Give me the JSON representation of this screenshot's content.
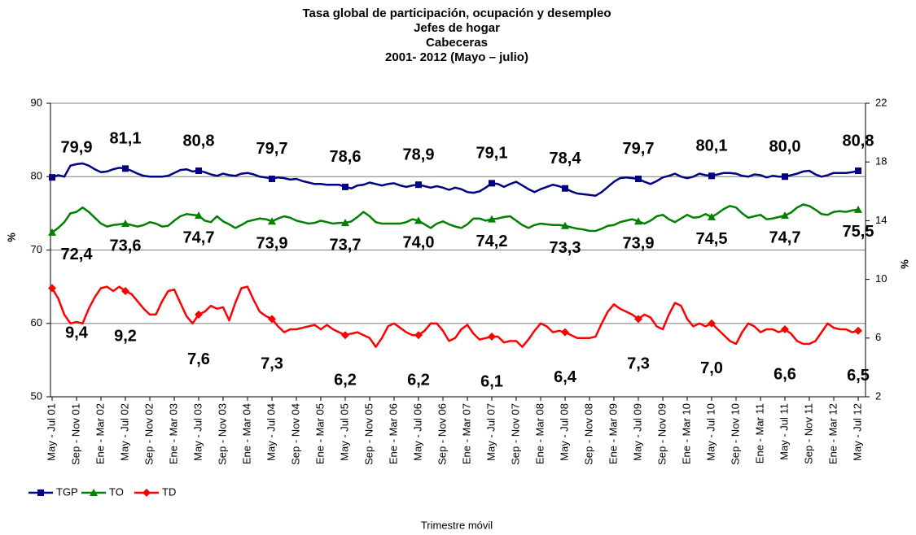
{
  "chart_data": {
    "type": "line",
    "title": [
      "Tasa global de participación, ocupación y desempleo",
      "Jefes de hogar",
      "Cabeceras",
      "2001- 2012 (Mayo – julio)"
    ],
    "x_label": "Trimestre móvil",
    "y_label": "%",
    "y2_label": "%",
    "categories": [
      "May - Jul 01",
      null,
      null,
      null,
      "Sep - Nov 01",
      null,
      null,
      null,
      "Ene - Mar 02",
      null,
      null,
      null,
      "May - Jul 02",
      null,
      null,
      null,
      "Sep - Nov 02",
      null,
      null,
      null,
      "Ene - Mar 03",
      null,
      null,
      null,
      "May - Jul 03",
      null,
      null,
      null,
      "Sep - Nov 03",
      null,
      null,
      null,
      "Ene - Mar 04",
      null,
      null,
      null,
      "May - Jul 04",
      null,
      null,
      null,
      "Sep - Nov 04",
      null,
      null,
      null,
      "Ene - Mar 05",
      null,
      null,
      null,
      "May - Jul 05",
      null,
      null,
      null,
      "Sep - Nov 05",
      null,
      null,
      null,
      "Ene - Mar 06",
      null,
      null,
      null,
      "May - Jul 06",
      null,
      null,
      null,
      "Sep - Nov 06",
      null,
      null,
      null,
      "Ene - Mar 07",
      null,
      null,
      null,
      "May - Jul 07",
      null,
      null,
      null,
      "Sep - Nov 07",
      null,
      null,
      null,
      "Ene - Mar 08",
      null,
      null,
      null,
      "May - Jul 08",
      null,
      null,
      null,
      "Sep - Nov 08",
      null,
      null,
      null,
      "Ene - Mar 09",
      null,
      null,
      null,
      "May - Jul 09",
      null,
      null,
      null,
      "Sep - Nov 09",
      null,
      null,
      null,
      "Ene - Mar 10",
      null,
      null,
      null,
      "May - Jul 10",
      null,
      null,
      null,
      "Sep - Nov 10",
      null,
      null,
      null,
      "Ene - Mar 11",
      null,
      null,
      null,
      "May - Jul 11",
      null,
      null,
      null,
      "Sep - Nov 11",
      null,
      null,
      null,
      "Ene - Mar 12",
      null,
      null,
      null,
      "May - Jul 12"
    ],
    "ylim": [
      50,
      90
    ],
    "yticks": [
      50,
      60,
      70,
      80,
      90
    ],
    "y2lim": [
      2,
      22
    ],
    "y2ticks": [
      2,
      6,
      10,
      14,
      18,
      22
    ],
    "grid": true,
    "series": [
      {
        "name": "TGP",
        "color": "#000080",
        "marker": "square",
        "values": [
          79.9,
          80.2,
          80.0,
          81.5,
          81.7,
          81.8,
          81.5,
          81.0,
          80.6,
          80.7,
          81.0,
          81.2,
          81.1,
          80.8,
          80.4,
          80.1,
          80.0,
          80.0,
          80.0,
          80.1,
          80.5,
          80.9,
          81.0,
          80.7,
          80.8,
          80.6,
          80.3,
          80.1,
          80.4,
          80.2,
          80.1,
          80.4,
          80.5,
          80.3,
          80.0,
          79.9,
          79.7,
          79.9,
          79.8,
          79.6,
          79.7,
          79.4,
          79.2,
          79.0,
          79.0,
          78.9,
          78.9,
          78.9,
          78.6,
          78.4,
          78.8,
          78.9,
          79.2,
          79.0,
          78.8,
          79.0,
          79.1,
          78.8,
          78.6,
          78.8,
          78.9,
          78.7,
          78.5,
          78.7,
          78.5,
          78.2,
          78.5,
          78.3,
          77.9,
          77.8,
          78.0,
          78.5,
          79.1,
          79.0,
          78.6,
          79.0,
          79.3,
          78.8,
          78.3,
          77.9,
          78.3,
          78.6,
          78.9,
          78.7,
          78.4,
          78.0,
          77.7,
          77.6,
          77.5,
          77.4,
          77.9,
          78.6,
          79.3,
          79.8,
          79.9,
          79.8,
          79.7,
          79.3,
          79.0,
          79.4,
          79.9,
          80.1,
          80.4,
          80.0,
          79.8,
          80.0,
          80.4,
          80.2,
          80.1,
          80.3,
          80.5,
          80.5,
          80.4,
          80.1,
          80.0,
          80.3,
          80.2,
          79.9,
          80.1,
          80.0,
          80.0,
          80.2,
          80.4,
          80.7,
          80.8,
          80.3,
          80.0,
          80.2,
          80.5,
          80.5,
          80.5,
          80.6,
          80.8
        ],
        "value_labels": [
          "79,9",
          null,
          null,
          null,
          null,
          null,
          null,
          null,
          null,
          null,
          null,
          null,
          "81,1",
          null,
          null,
          null,
          null,
          null,
          null,
          null,
          null,
          null,
          null,
          null,
          "80,8",
          null,
          null,
          null,
          null,
          null,
          null,
          null,
          null,
          null,
          null,
          null,
          "79,7",
          null,
          null,
          null,
          null,
          null,
          null,
          null,
          null,
          null,
          null,
          null,
          "78,6",
          null,
          null,
          null,
          null,
          null,
          null,
          null,
          null,
          null,
          null,
          null,
          "78,9",
          null,
          null,
          null,
          null,
          null,
          null,
          null,
          null,
          null,
          null,
          null,
          "79,1",
          null,
          null,
          null,
          null,
          null,
          null,
          null,
          null,
          null,
          null,
          null,
          "78,4",
          null,
          null,
          null,
          null,
          null,
          null,
          null,
          null,
          null,
          null,
          null,
          "79,7",
          null,
          null,
          null,
          null,
          null,
          null,
          null,
          null,
          null,
          null,
          null,
          "80,1",
          null,
          null,
          null,
          null,
          null,
          null,
          null,
          null,
          null,
          null,
          null,
          "80,0",
          null,
          null,
          null,
          null,
          null,
          null,
          null,
          null,
          null,
          null,
          null,
          "80,8"
        ]
      },
      {
        "name": "TO",
        "color": "#008000",
        "marker": "triangle",
        "values": [
          72.4,
          73.0,
          73.8,
          75.0,
          75.2,
          75.8,
          75.2,
          74.4,
          73.6,
          73.2,
          73.4,
          73.5,
          73.6,
          73.4,
          73.2,
          73.4,
          73.8,
          73.6,
          73.2,
          73.3,
          74.0,
          74.6,
          74.9,
          74.8,
          74.7,
          74.0,
          73.8,
          74.6,
          73.9,
          73.5,
          73.0,
          73.4,
          73.9,
          74.1,
          74.3,
          74.2,
          73.9,
          74.3,
          74.6,
          74.4,
          74.0,
          73.8,
          73.6,
          73.7,
          74.0,
          73.8,
          73.6,
          73.7,
          73.7,
          73.9,
          74.5,
          75.2,
          74.6,
          73.8,
          73.6,
          73.6,
          73.6,
          73.6,
          73.8,
          74.2,
          74.0,
          73.5,
          73.0,
          73.6,
          73.9,
          73.5,
          73.2,
          73.0,
          73.5,
          74.3,
          74.3,
          74.0,
          74.2,
          74.3,
          74.5,
          74.6,
          74.0,
          73.4,
          73.0,
          73.4,
          73.6,
          73.5,
          73.4,
          73.4,
          73.3,
          73.1,
          72.9,
          72.8,
          72.6,
          72.6,
          72.9,
          73.3,
          73.4,
          73.8,
          74.0,
          74.2,
          73.9,
          73.6,
          74.0,
          74.6,
          74.8,
          74.2,
          73.8,
          74.3,
          74.8,
          74.4,
          74.5,
          74.9,
          74.5,
          75.0,
          75.6,
          76.0,
          75.8,
          75.0,
          74.4,
          74.6,
          74.8,
          74.2,
          74.3,
          74.5,
          74.7,
          75.1,
          75.8,
          76.2,
          76.0,
          75.5,
          74.9,
          74.8,
          75.2,
          75.3,
          75.2,
          75.4,
          75.5
        ],
        "value_labels": [
          "72,4",
          null,
          null,
          null,
          null,
          null,
          null,
          null,
          null,
          null,
          null,
          null,
          "73,6",
          null,
          null,
          null,
          null,
          null,
          null,
          null,
          null,
          null,
          null,
          null,
          "74,7",
          null,
          null,
          null,
          null,
          null,
          null,
          null,
          null,
          null,
          null,
          null,
          "73,9",
          null,
          null,
          null,
          null,
          null,
          null,
          null,
          null,
          null,
          null,
          null,
          "73,7",
          null,
          null,
          null,
          null,
          null,
          null,
          null,
          null,
          null,
          null,
          null,
          "74,0",
          null,
          null,
          null,
          null,
          null,
          null,
          null,
          null,
          null,
          null,
          null,
          "74,2",
          null,
          null,
          null,
          null,
          null,
          null,
          null,
          null,
          null,
          null,
          null,
          "73,3",
          null,
          null,
          null,
          null,
          null,
          null,
          null,
          null,
          null,
          null,
          null,
          "73,9",
          null,
          null,
          null,
          null,
          null,
          null,
          null,
          null,
          null,
          null,
          null,
          "74,5",
          null,
          null,
          null,
          null,
          null,
          null,
          null,
          null,
          null,
          null,
          null,
          "74,7",
          null,
          null,
          null,
          null,
          null,
          null,
          null,
          null,
          null,
          null,
          null,
          "75,5"
        ]
      },
      {
        "name": "TD",
        "color": "#ff0000",
        "marker": "diamond",
        "axis": "y2",
        "values": [
          9.4,
          8.7,
          7.6,
          7.0,
          7.1,
          7.0,
          8.0,
          8.8,
          9.4,
          9.5,
          9.2,
          9.5,
          9.2,
          9.0,
          8.5,
          8.0,
          7.6,
          7.6,
          8.5,
          9.2,
          9.3,
          8.4,
          7.5,
          7.0,
          7.6,
          7.8,
          8.2,
          8.0,
          8.1,
          7.2,
          8.4,
          9.4,
          9.5,
          8.6,
          7.8,
          7.5,
          7.3,
          6.8,
          6.4,
          6.6,
          6.6,
          6.7,
          6.8,
          6.9,
          6.6,
          6.9,
          6.6,
          6.4,
          6.2,
          6.3,
          6.4,
          6.2,
          6.0,
          5.4,
          6.0,
          6.8,
          7.0,
          6.7,
          6.4,
          6.2,
          6.2,
          6.5,
          7.0,
          7.0,
          6.5,
          5.8,
          6.0,
          6.6,
          6.9,
          6.3,
          5.9,
          6.0,
          6.1,
          6.1,
          5.7,
          5.8,
          5.8,
          5.4,
          5.9,
          6.5,
          7.0,
          6.8,
          6.4,
          6.5,
          6.4,
          6.2,
          6.0,
          6.0,
          6.0,
          6.1,
          7.0,
          7.8,
          8.3,
          8.0,
          7.8,
          7.6,
          7.3,
          7.6,
          7.4,
          6.8,
          6.6,
          7.6,
          8.4,
          8.2,
          7.3,
          6.8,
          7.0,
          6.8,
          7.0,
          6.6,
          6.2,
          5.8,
          5.6,
          6.4,
          7.0,
          6.8,
          6.4,
          6.6,
          6.6,
          6.4,
          6.6,
          6.3,
          5.8,
          5.6,
          5.6,
          5.8,
          6.4,
          7.0,
          6.7,
          6.6,
          6.6,
          6.4,
          6.5
        ],
        "value_labels": [
          "9,4",
          null,
          null,
          null,
          null,
          null,
          null,
          null,
          null,
          null,
          null,
          null,
          "9,2",
          null,
          null,
          null,
          null,
          null,
          null,
          null,
          null,
          null,
          null,
          null,
          "7,6",
          null,
          null,
          null,
          null,
          null,
          null,
          null,
          null,
          null,
          null,
          null,
          "7,3",
          null,
          null,
          null,
          null,
          null,
          null,
          null,
          null,
          null,
          null,
          null,
          "6,2",
          null,
          null,
          null,
          null,
          null,
          null,
          null,
          null,
          null,
          null,
          null,
          "6,2",
          null,
          null,
          null,
          null,
          null,
          null,
          null,
          null,
          null,
          null,
          null,
          "6,1",
          null,
          null,
          null,
          null,
          null,
          null,
          null,
          null,
          null,
          null,
          null,
          "6,4",
          null,
          null,
          null,
          null,
          null,
          null,
          null,
          null,
          null,
          null,
          null,
          "7,3",
          null,
          null,
          null,
          null,
          null,
          null,
          null,
          null,
          null,
          null,
          null,
          "7,0",
          null,
          null,
          null,
          null,
          null,
          null,
          null,
          null,
          null,
          null,
          null,
          "6,6",
          null,
          null,
          null,
          null,
          null,
          null,
          null,
          null,
          null,
          null,
          null,
          "6,5"
        ]
      }
    ]
  }
}
